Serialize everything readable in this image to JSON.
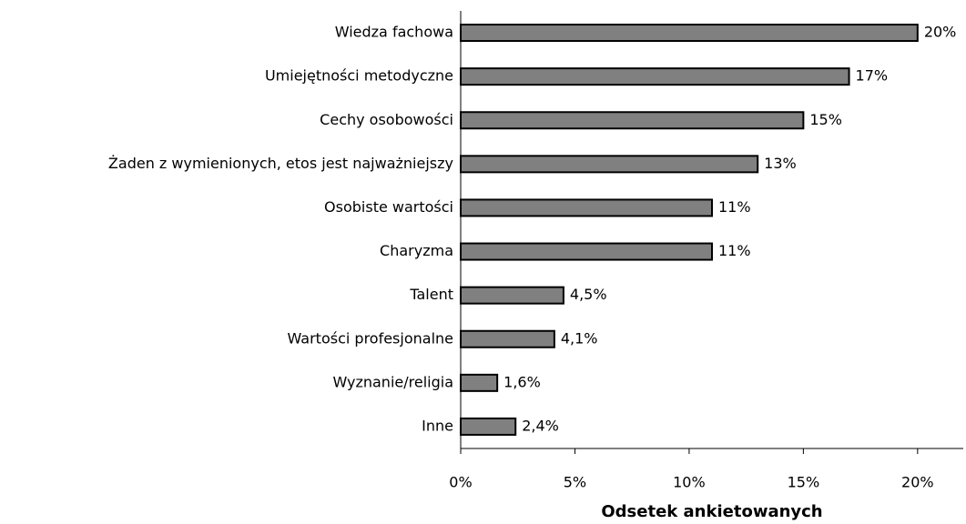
{
  "chart_data": {
    "type": "barh",
    "xlabel": "Odsetek ankietowanych",
    "categories": [
      "Wiedza fachowa",
      "Umiejętności metodyczne",
      "Cechy osobowości",
      "Żaden z wymienionych, etos jest najważniejszy",
      "Osobiste wartości",
      "Charyzma",
      "Talent",
      "Wartości profesjonalne",
      "Wyznanie/religia",
      "Inne"
    ],
    "values": [
      20,
      17,
      15,
      13,
      11,
      11,
      4.5,
      4.1,
      1.6,
      2.4
    ],
    "value_labels": [
      "20%",
      "17%",
      "15%",
      "13%",
      "11%",
      "11%",
      "4,5%",
      "4,1%",
      "1,6%",
      "2,4%"
    ],
    "color": "#808080",
    "xlim": [
      0,
      22
    ],
    "xticks": [
      {
        "value": 0,
        "label": "0%"
      },
      {
        "value": 5,
        "label": "5%"
      },
      {
        "value": 10,
        "label": "10%"
      },
      {
        "value": 15,
        "label": "15%"
      },
      {
        "value": 20,
        "label": "20%"
      }
    ]
  }
}
